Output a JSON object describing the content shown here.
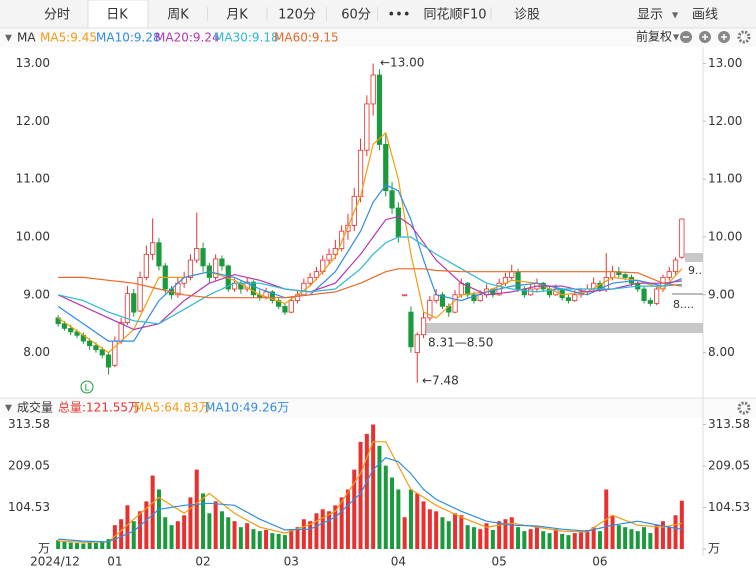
{
  "toolbar": {
    "tabs": [
      "分时",
      "日K",
      "周K",
      "月K",
      "120分",
      "60分",
      "•••",
      "同花顺F10",
      "诊股"
    ],
    "right": [
      "显示",
      "画线"
    ]
  },
  "chart_data": [
    {
      "type": "candlestick",
      "title": "MA",
      "adjust_label": "前复权",
      "up_color": "#e8312f",
      "down_color": "#1a9a3c",
      "ylim": [
        7.25,
        13.25
      ],
      "yticks": [
        {
          "value": 8,
          "label": "8.00"
        },
        {
          "value": 9,
          "label": "9.00"
        },
        {
          "value": 10,
          "label": "10.00"
        },
        {
          "value": 11,
          "label": "11.00"
        },
        {
          "value": 12,
          "label": "12.00"
        },
        {
          "value": 13,
          "label": "13.00"
        }
      ],
      "ohlc": [
        [
          8.6,
          8.65,
          8.45,
          8.5
        ],
        [
          8.5,
          8.55,
          8.38,
          8.42
        ],
        [
          8.42,
          8.48,
          8.3,
          8.36
        ],
        [
          8.36,
          8.4,
          8.25,
          8.3
        ],
        [
          8.3,
          8.35,
          8.15,
          8.2
        ],
        [
          8.2,
          8.25,
          8.05,
          8.12
        ],
        [
          8.12,
          8.18,
          8,
          8.05
        ],
        [
          8.05,
          8.1,
          7.9,
          7.96
        ],
        [
          7.96,
          8,
          7.62,
          7.75
        ],
        [
          7.78,
          8.28,
          7.75,
          8.2
        ],
        [
          8.2,
          8.6,
          8.15,
          8.52
        ],
        [
          8.52,
          9.15,
          8.48,
          9.02
        ],
        [
          9.02,
          9.1,
          8.62,
          8.7
        ],
        [
          8.72,
          9.4,
          8.7,
          9.3
        ],
        [
          9.3,
          9.85,
          9.25,
          9.7
        ],
        [
          9.7,
          10.32,
          9.6,
          9.9
        ],
        [
          9.9,
          9.98,
          9.42,
          9.5
        ],
        [
          9.5,
          9.55,
          9.02,
          9.1
        ],
        [
          9.1,
          9.15,
          8.92,
          9
        ],
        [
          9,
          9.3,
          8.95,
          9.2
        ],
        [
          9.2,
          9.4,
          9.12,
          9.3
        ],
        [
          9.3,
          9.7,
          9.25,
          9.6
        ],
        [
          9.6,
          10.42,
          9.55,
          9.8
        ],
        [
          9.8,
          9.9,
          9.4,
          9.5
        ],
        [
          9.5,
          9.55,
          9.2,
          9.3
        ],
        [
          9.3,
          9.7,
          9.25,
          9.62
        ],
        [
          9.62,
          9.68,
          9.42,
          9.5
        ],
        [
          9.5,
          9.52,
          9.05,
          9.1
        ],
        [
          9.1,
          9.28,
          9.05,
          9.2
        ],
        [
          9.2,
          9.24,
          9.02,
          9.1
        ],
        [
          9.1,
          9.3,
          9.05,
          9.22
        ],
        [
          9.22,
          9.25,
          8.95,
          9
        ],
        [
          9,
          9.08,
          8.9,
          8.95
        ],
        [
          8.95,
          9.12,
          8.92,
          9.05
        ],
        [
          9.05,
          9.08,
          8.85,
          8.9
        ],
        [
          8.9,
          8.95,
          8.75,
          8.8
        ],
        [
          8.8,
          8.85,
          8.65,
          8.7
        ],
        [
          8.7,
          8.98,
          8.68,
          8.9
        ],
        [
          8.9,
          9.08,
          8.85,
          9
        ],
        [
          9,
          9.28,
          8.98,
          9.2
        ],
        [
          9.2,
          9.38,
          9.15,
          9.3
        ],
        [
          9.3,
          9.48,
          9.25,
          9.4
        ],
        [
          9.4,
          9.68,
          9.35,
          9.6
        ],
        [
          9.6,
          9.8,
          9.52,
          9.7
        ],
        [
          9.7,
          9.95,
          9.62,
          9.8
        ],
        [
          9.8,
          10.2,
          9.75,
          10.1
        ],
        [
          10.1,
          10.4,
          9.95,
          10.2
        ],
        [
          10.2,
          10.85,
          10.1,
          10.7
        ],
        [
          10.7,
          11.7,
          10.6,
          11.5
        ],
        [
          11.5,
          12.45,
          11.4,
          12.3
        ],
        [
          12.3,
          13,
          12.1,
          12.8
        ],
        [
          12.8,
          12.9,
          11.5,
          11.6
        ],
        [
          11.6,
          11.8,
          10.7,
          10.8
        ],
        [
          10.8,
          10.95,
          10.4,
          10.5
        ],
        [
          10.5,
          10.6,
          9.9,
          10
        ],
        [
          9,
          9,
          9,
          9
        ],
        [
          8.7,
          8.8,
          8,
          8.1
        ],
        [
          8,
          8.35,
          7.48,
          8.31
        ],
        [
          8.31,
          8.7,
          8.25,
          8.6
        ],
        [
          8.6,
          8.98,
          8.55,
          8.9
        ],
        [
          8.9,
          9.1,
          8.85,
          9
        ],
        [
          9,
          9.05,
          8.75,
          8.8
        ],
        [
          8.8,
          8.85,
          8.62,
          8.7
        ],
        [
          8.7,
          9.08,
          8.68,
          9
        ],
        [
          9,
          9.28,
          8.95,
          9.2
        ],
        [
          9.2,
          9.22,
          8.95,
          9
        ],
        [
          9,
          9.05,
          8.85,
          8.9
        ],
        [
          8.9,
          9.08,
          8.88,
          9
        ],
        [
          9,
          9.18,
          8.95,
          9.1
        ],
        [
          9.1,
          9.12,
          8.95,
          9
        ],
        [
          9,
          9.28,
          8.98,
          9.2
        ],
        [
          9.2,
          9.38,
          9.15,
          9.3
        ],
        [
          9.3,
          9.52,
          9.25,
          9.4
        ],
        [
          9.4,
          9.45,
          9.05,
          9.1
        ],
        [
          9.1,
          9.15,
          8.95,
          9
        ],
        [
          9,
          9.18,
          8.98,
          9.1
        ],
        [
          9.1,
          9.28,
          9.05,
          9.2
        ],
        [
          9.2,
          9.22,
          9.05,
          9.1
        ],
        [
          9.1,
          9.15,
          8.95,
          9
        ],
        [
          9,
          9.18,
          8.98,
          9.1
        ],
        [
          9.1,
          9.12,
          8.9,
          8.95
        ],
        [
          8.95,
          9,
          8.85,
          8.9
        ],
        [
          8.9,
          9.08,
          8.88,
          9
        ],
        [
          9,
          9.12,
          8.95,
          9.05
        ],
        [
          9.05,
          9.18,
          9,
          9.1
        ],
        [
          9.1,
          9.3,
          9.05,
          9.2
        ],
        [
          9.2,
          9.25,
          9.05,
          9.1
        ],
        [
          9.1,
          9.72,
          9.05,
          9.3
        ],
        [
          9.3,
          9.5,
          9.25,
          9.4
        ],
        [
          9.4,
          9.48,
          9.3,
          9.35
        ],
        [
          9.35,
          9.4,
          9.25,
          9.3
        ],
        [
          9.3,
          9.35,
          9.15,
          9.2
        ],
        [
          9.2,
          9.25,
          9.05,
          9.1
        ],
        [
          9.1,
          9.15,
          8.85,
          8.9
        ],
        [
          8.9,
          8.95,
          8.8,
          8.85
        ],
        [
          8.85,
          9.15,
          8.82,
          9.1
        ],
        [
          9.1,
          9.35,
          9.05,
          9.3
        ],
        [
          9.3,
          9.48,
          9.25,
          9.4
        ],
        [
          9.4,
          9.65,
          9.35,
          9.6
        ],
        [
          9.65,
          10.32,
          9.62,
          10.31
        ]
      ],
      "series": [
        {
          "name": "MA5:9.45",
          "color": "#f39c12",
          "x": [
            0,
            4,
            8,
            12,
            16,
            20,
            24,
            28,
            32,
            36,
            40,
            44,
            48,
            50,
            52,
            54,
            56,
            58,
            60,
            64,
            68,
            72,
            76,
            80,
            84,
            88,
            92,
            96,
            99
          ],
          "values": [
            8.6,
            8.3,
            8,
            8.4,
            9.3,
            9.3,
            9.4,
            9.25,
            9,
            8.85,
            9.15,
            9.65,
            10.7,
            11.6,
            11.8,
            11,
            9.7,
            8.7,
            8.6,
            9,
            9.05,
            9.25,
            9.2,
            9,
            9.05,
            9.3,
            9.25,
            9.1,
            9.45
          ]
        },
        {
          "name": "MA10:9.28",
          "color": "#2f8de4",
          "x": [
            0,
            4,
            8,
            12,
            16,
            20,
            24,
            28,
            32,
            36,
            40,
            44,
            48,
            50,
            52,
            54,
            56,
            58,
            60,
            64,
            68,
            72,
            76,
            80,
            84,
            88,
            92,
            96,
            99
          ],
          "values": [
            8.8,
            8.5,
            8.2,
            8.2,
            8.9,
            9.3,
            9.4,
            9.3,
            9.1,
            8.95,
            9,
            9.4,
            10.1,
            10.6,
            10.9,
            10.8,
            10.3,
            9.6,
            9,
            8.9,
            9.05,
            9.15,
            9.2,
            9.1,
            9,
            9.2,
            9.25,
            9.15,
            9.28
          ]
        },
        {
          "name": "MA20:9.24",
          "color": "#b538b0",
          "x": [
            0,
            4,
            8,
            12,
            16,
            20,
            24,
            28,
            32,
            36,
            40,
            44,
            48,
            50,
            52,
            54,
            56,
            58,
            60,
            64,
            68,
            72,
            76,
            80,
            84,
            88,
            92,
            96,
            99
          ],
          "values": [
            9,
            8.8,
            8.6,
            8.4,
            8.5,
            8.9,
            9.2,
            9.35,
            9.25,
            9.1,
            9.05,
            9.2,
            9.7,
            10,
            10.3,
            10.35,
            10.2,
            9.9,
            9.6,
            9.2,
            9,
            9.05,
            9.15,
            9.15,
            9.05,
            9.1,
            9.2,
            9.2,
            9.24
          ]
        },
        {
          "name": "MA30:9.18",
          "color": "#2eb8d4",
          "x": [
            0,
            4,
            8,
            12,
            16,
            20,
            24,
            28,
            32,
            36,
            40,
            44,
            48,
            50,
            52,
            54,
            56,
            58,
            60,
            64,
            68,
            72,
            76,
            80,
            84,
            88,
            92,
            96,
            99
          ],
          "values": [
            9,
            8.9,
            8.7,
            8.55,
            8.5,
            8.75,
            9,
            9.2,
            9.2,
            9.1,
            9.05,
            9.1,
            9.45,
            9.7,
            9.9,
            10,
            10,
            9.85,
            9.7,
            9.45,
            9.2,
            9.1,
            9.05,
            9.1,
            9.1,
            9.1,
            9.15,
            9.15,
            9.18
          ]
        },
        {
          "name": "MA60:9.15",
          "color": "#e8692a",
          "x": [
            0,
            4,
            8,
            12,
            16,
            20,
            24,
            28,
            32,
            36,
            40,
            44,
            48,
            50,
            52,
            54,
            56,
            58,
            60,
            64,
            68,
            72,
            76,
            80,
            84,
            88,
            92,
            96,
            99
          ],
          "values": [
            9.3,
            9.3,
            9.25,
            9.2,
            9.1,
            9,
            8.95,
            8.95,
            8.95,
            8.95,
            9,
            9.05,
            9.2,
            9.3,
            9.4,
            9.45,
            9.45,
            9.45,
            9.42,
            9.4,
            9.4,
            9.4,
            9.4,
            9.4,
            9.4,
            9.4,
            9.38,
            9.2,
            9.15
          ]
        }
      ],
      "annotations": [
        "←13.00",
        "←7.48",
        "8.31—8.50",
        "9..",
        "8....",
        "L"
      ]
    },
    {
      "type": "bar",
      "title": "成交量",
      "total_label": "总量:121.55万",
      "ylim": [
        0,
        330
      ],
      "yticks": [
        {
          "value": 0,
          "label": "万"
        },
        104.53,
        209.05,
        313.58
      ],
      "categories": [
        "2024/12",
        null,
        null,
        null,
        null,
        null,
        null,
        null,
        null,
        "01",
        null,
        null,
        null,
        null,
        null,
        null,
        null,
        null,
        null,
        null,
        null,
        null,
        null,
        "02",
        null,
        null,
        null,
        null,
        null,
        null,
        null,
        null,
        null,
        null,
        null,
        null,
        null,
        "03",
        null,
        null,
        null,
        null,
        null,
        null,
        null,
        null,
        null,
        null,
        null,
        null,
        null,
        null,
        null,
        null,
        "04",
        null,
        null,
        null,
        null,
        null,
        null,
        null,
        null,
        null,
        null,
        null,
        null,
        null,
        null,
        null,
        "05",
        null,
        null,
        null,
        null,
        null,
        null,
        null,
        null,
        null,
        null,
        null,
        null,
        null,
        null,
        null,
        "06",
        null,
        null,
        null,
        null,
        null,
        null,
        null,
        null,
        null,
        null,
        null,
        null,
        null
      ],
      "values": [
        22,
        18,
        16,
        15,
        14,
        16,
        15,
        18,
        25,
        60,
        75,
        110,
        70,
        95,
        120,
        185,
        150,
        80,
        60,
        70,
        85,
        130,
        200,
        140,
        90,
        120,
        95,
        80,
        70,
        55,
        65,
        50,
        45,
        48,
        40,
        38,
        35,
        50,
        55,
        75,
        70,
        90,
        100,
        95,
        110,
        130,
        150,
        200,
        270,
        290,
        313.58,
        260,
        210,
        180,
        150,
        80,
        150,
        140,
        120,
        100,
        95,
        80,
        70,
        90,
        85,
        60,
        55,
        50,
        65,
        48,
        70,
        75,
        80,
        55,
        45,
        50,
        55,
        45,
        40,
        50,
        38,
        35,
        40,
        42,
        48,
        55,
        45,
        150,
        85,
        60,
        55,
        50,
        45,
        55,
        40,
        60,
        70,
        55,
        85,
        121.55
      ],
      "series": [
        {
          "name": "MA5:64.83万",
          "color": "#f39c12",
          "x": [
            0,
            4,
            8,
            12,
            16,
            20,
            24,
            28,
            32,
            36,
            40,
            44,
            48,
            50,
            52,
            54,
            56,
            58,
            60,
            64,
            68,
            72,
            76,
            80,
            84,
            88,
            92,
            96,
            99
          ],
          "values": [
            20,
            17,
            18,
            75,
            130,
            90,
            140,
            90,
            55,
            40,
            62,
            95,
            190,
            270,
            270,
            210,
            150,
            130,
            110,
            80,
            55,
            65,
            55,
            45,
            43,
            85,
            60,
            55,
            64.83
          ]
        },
        {
          "name": "MA10:49.26万",
          "color": "#2f8de4",
          "x": [
            0,
            4,
            8,
            12,
            16,
            20,
            24,
            28,
            32,
            36,
            40,
            44,
            48,
            50,
            52,
            54,
            56,
            58,
            60,
            64,
            68,
            72,
            76,
            80,
            84,
            88,
            92,
            96,
            99
          ],
          "values": [
            25,
            20,
            18,
            45,
            100,
            110,
            115,
            110,
            75,
            48,
            50,
            80,
            140,
            200,
            230,
            220,
            190,
            150,
            125,
            95,
            70,
            60,
            58,
            50,
            45,
            60,
            70,
            58,
            49.26
          ]
        }
      ]
    }
  ]
}
